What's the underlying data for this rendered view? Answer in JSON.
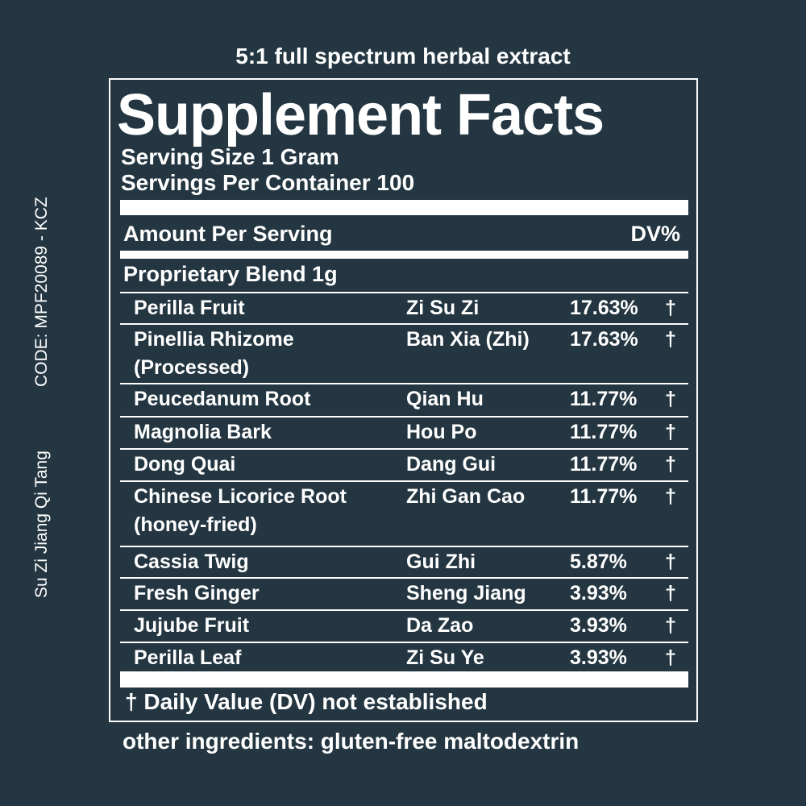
{
  "side_text": {
    "code": "CODE: MPF20089 - KCZ",
    "formula_name": "Su Zi Jiang Qi Tang"
  },
  "caption": "5:1 full spectrum herbal extract",
  "panel": {
    "title": "Supplement Facts",
    "serving_size": "Serving Size 1 Gram",
    "servings_per_container": "Servings Per Container 100",
    "amount_label": "Amount Per Serving",
    "dv_label": "DV%",
    "blend_label": "Proprietary Blend 1g",
    "ingredients": [
      {
        "name": [
          "Perilla Fruit"
        ],
        "pinyin": "Zi Su Zi",
        "percent": "17.63%",
        "dagger": "†"
      },
      {
        "name": [
          "Pinellia Rhizome",
          "(Processed)"
        ],
        "pinyin": "Ban Xia (Zhi)",
        "percent": "17.63%",
        "dagger": "†"
      },
      {
        "name": [
          "Peucedanum Root"
        ],
        "pinyin": "Qian Hu",
        "percent": "11.77%",
        "dagger": "†"
      },
      {
        "name": [
          "Magnolia Bark"
        ],
        "pinyin": "Hou Po",
        "percent": "11.77%",
        "dagger": "†"
      },
      {
        "name": [
          "Dong Quai"
        ],
        "pinyin": "Dang Gui",
        "percent": "11.77%",
        "dagger": "†"
      },
      {
        "name": [
          "Chinese Licorice Root",
          "(honey-fried)"
        ],
        "pinyin": "Zhi Gan Cao",
        "percent": "11.77%",
        "dagger": "†"
      },
      {
        "name": [
          "Cassia Twig"
        ],
        "pinyin": "Gui Zhi",
        "percent": "5.87%",
        "dagger": "†"
      },
      {
        "name": [
          "Fresh Ginger"
        ],
        "pinyin": "Sheng Jiang",
        "percent": "3.93%",
        "dagger": "†"
      },
      {
        "name": [
          "Jujube Fruit"
        ],
        "pinyin": "Da Zao",
        "percent": "3.93%",
        "dagger": "†"
      },
      {
        "name": [
          "Perilla Leaf"
        ],
        "pinyin": "Zi Su Ye",
        "percent": "3.93%",
        "dagger": "†"
      }
    ],
    "footnote": "† Daily Value (DV) not established"
  },
  "other_ingredients": "other ingredients: gluten-free maltodextrin"
}
